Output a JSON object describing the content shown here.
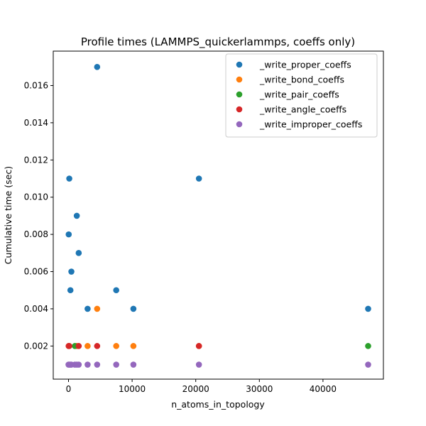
{
  "chart_data": {
    "type": "scatter",
    "title": "Profile times (LAMMPS_quickerlammps, coeffs only)",
    "xlabel": "n_atoms_in_topology",
    "ylabel": "Cumulative time (sec)",
    "xlim": [
      -2400,
      49500
    ],
    "ylim": [
      0.00022,
      0.01785
    ],
    "xticks": [
      0,
      10000,
      20000,
      30000,
      40000
    ],
    "xtick_labels": [
      "0",
      "10000",
      "20000",
      "30000",
      "40000"
    ],
    "yticks": [
      0.002,
      0.004,
      0.006,
      0.008,
      0.01,
      0.012,
      0.014,
      0.016
    ],
    "ytick_labels": [
      "0.002",
      "0.004",
      "0.006",
      "0.008",
      "0.010",
      "0.012",
      "0.014",
      "0.016"
    ],
    "grid": false,
    "legend_position": "top-right",
    "series": [
      {
        "name": "_write_proper_coeffs",
        "color": "#1f77b4",
        "points": [
          [
            30,
            0.008
          ],
          [
            120,
            0.011
          ],
          [
            300,
            0.005
          ],
          [
            450,
            0.006
          ],
          [
            1300,
            0.009
          ],
          [
            1600,
            0.007
          ],
          [
            3000,
            0.004
          ],
          [
            4500,
            0.017
          ],
          [
            7500,
            0.005
          ],
          [
            10200,
            0.004
          ],
          [
            20500,
            0.011
          ],
          [
            47100,
            0.004
          ]
        ]
      },
      {
        "name": "_write_bond_coeffs",
        "color": "#ff7f0e",
        "points": [
          [
            30,
            0.002
          ],
          [
            1300,
            0.002
          ],
          [
            3000,
            0.002
          ],
          [
            4500,
            0.004
          ],
          [
            7500,
            0.002
          ],
          [
            10200,
            0.002
          ],
          [
            20500,
            0.002
          ]
        ]
      },
      {
        "name": "_write_pair_coeffs",
        "color": "#2ca02c",
        "points": [
          [
            1000,
            0.002
          ],
          [
            47100,
            0.002
          ]
        ]
      },
      {
        "name": "_write_angle_coeffs",
        "color": "#d62728",
        "points": [
          [
            30,
            0.002
          ],
          [
            120,
            0.002
          ],
          [
            1600,
            0.002
          ],
          [
            4500,
            0.002
          ],
          [
            20500,
            0.002
          ]
        ]
      },
      {
        "name": "_write_improper_coeffs",
        "color": "#9467bd",
        "points": [
          [
            0,
            0.001
          ],
          [
            120,
            0.001
          ],
          [
            300,
            0.001
          ],
          [
            450,
            0.001
          ],
          [
            1000,
            0.001
          ],
          [
            1300,
            0.001
          ],
          [
            1600,
            0.001
          ],
          [
            3000,
            0.001
          ],
          [
            4500,
            0.001
          ],
          [
            7500,
            0.001
          ],
          [
            10200,
            0.001
          ],
          [
            20500,
            0.001
          ],
          [
            47100,
            0.001
          ]
        ]
      }
    ]
  }
}
